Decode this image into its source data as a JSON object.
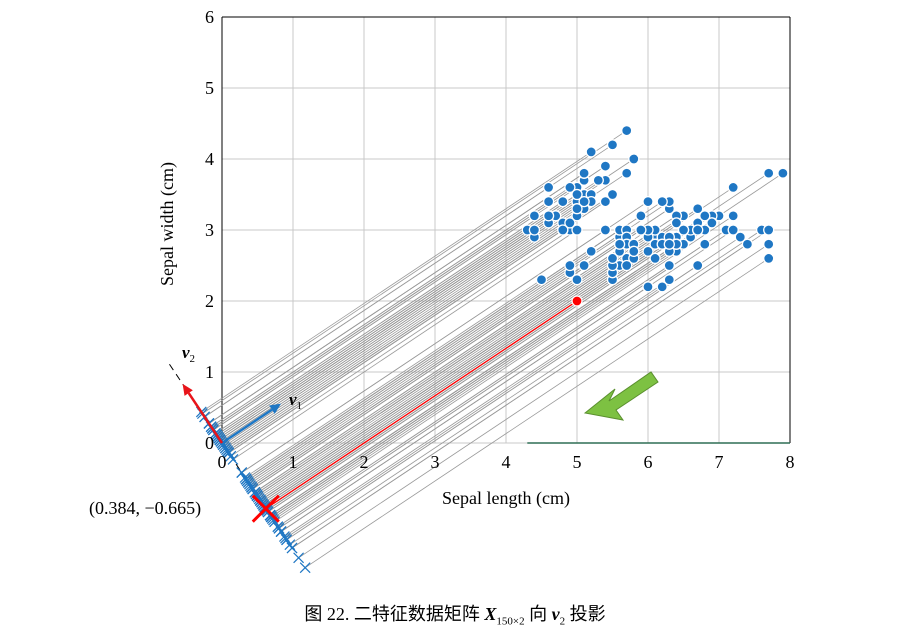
{
  "chart_data": {
    "type": "scatter",
    "xlabel": "Sepal length (cm)",
    "ylabel": "Sepal width (cm)",
    "xlim": [
      0,
      8
    ],
    "ylim": [
      0,
      6
    ],
    "xticks": [
      "0",
      "1",
      "2",
      "3",
      "4",
      "5",
      "6",
      "7",
      "8"
    ],
    "yticks": [
      "0",
      "1",
      "2",
      "3",
      "4",
      "5",
      "6"
    ],
    "grid": true,
    "v1_label": "v",
    "v1_sub": "1",
    "v2_label": "v",
    "v2_sub": "2",
    "v1": [
      0.832,
      0.555
    ],
    "v2": [
      -0.555,
      0.832
    ],
    "highlight_point": [
      5.0,
      2.0
    ],
    "highlight_projection_label": "(0.384, −0.665)",
    "points": [
      [
        5.1,
        3.5
      ],
      [
        4.9,
        3.0
      ],
      [
        4.7,
        3.2
      ],
      [
        4.6,
        3.1
      ],
      [
        5.0,
        3.6
      ],
      [
        5.4,
        3.9
      ],
      [
        4.6,
        3.4
      ],
      [
        5.0,
        3.4
      ],
      [
        4.4,
        2.9
      ],
      [
        4.9,
        3.1
      ],
      [
        5.4,
        3.7
      ],
      [
        4.8,
        3.4
      ],
      [
        4.8,
        3.0
      ],
      [
        4.3,
        3.0
      ],
      [
        5.8,
        4.0
      ],
      [
        5.7,
        4.4
      ],
      [
        5.4,
        3.9
      ],
      [
        5.1,
        3.5
      ],
      [
        5.7,
        3.8
      ],
      [
        5.1,
        3.8
      ],
      [
        5.4,
        3.4
      ],
      [
        5.1,
        3.7
      ],
      [
        4.6,
        3.6
      ],
      [
        5.1,
        3.3
      ],
      [
        4.8,
        3.4
      ],
      [
        5.0,
        3.0
      ],
      [
        5.0,
        3.4
      ],
      [
        5.2,
        3.5
      ],
      [
        5.2,
        3.4
      ],
      [
        4.7,
        3.2
      ],
      [
        4.8,
        3.1
      ],
      [
        5.4,
        3.4
      ],
      [
        5.2,
        4.1
      ],
      [
        5.5,
        4.2
      ],
      [
        4.9,
        3.1
      ],
      [
        5.0,
        3.2
      ],
      [
        5.5,
        3.5
      ],
      [
        4.9,
        3.6
      ],
      [
        4.4,
        3.0
      ],
      [
        5.1,
        3.4
      ],
      [
        5.0,
        3.5
      ],
      [
        4.5,
        2.3
      ],
      [
        4.4,
        3.2
      ],
      [
        5.0,
        3.5
      ],
      [
        5.1,
        3.8
      ],
      [
        4.8,
        3.0
      ],
      [
        5.1,
        3.8
      ],
      [
        4.6,
        3.2
      ],
      [
        5.3,
        3.7
      ],
      [
        5.0,
        3.3
      ],
      [
        7.0,
        3.2
      ],
      [
        6.4,
        3.2
      ],
      [
        6.9,
        3.1
      ],
      [
        5.5,
        2.3
      ],
      [
        6.5,
        2.8
      ],
      [
        5.7,
        2.8
      ],
      [
        6.3,
        3.3
      ],
      [
        4.9,
        2.4
      ],
      [
        6.6,
        2.9
      ],
      [
        5.2,
        2.7
      ],
      [
        5.0,
        2.0
      ],
      [
        5.9,
        3.0
      ],
      [
        6.0,
        2.2
      ],
      [
        6.1,
        2.9
      ],
      [
        5.6,
        2.9
      ],
      [
        6.7,
        3.1
      ],
      [
        5.6,
        3.0
      ],
      [
        5.8,
        2.7
      ],
      [
        6.2,
        2.2
      ],
      [
        5.6,
        2.5
      ],
      [
        5.9,
        3.2
      ],
      [
        6.1,
        2.8
      ],
      [
        6.3,
        2.5
      ],
      [
        6.1,
        2.8
      ],
      [
        6.4,
        2.9
      ],
      [
        6.6,
        3.0
      ],
      [
        6.8,
        2.8
      ],
      [
        6.7,
        3.0
      ],
      [
        6.0,
        2.9
      ],
      [
        5.7,
        2.6
      ],
      [
        5.5,
        2.4
      ],
      [
        5.5,
        2.4
      ],
      [
        5.8,
        2.7
      ],
      [
        6.0,
        2.7
      ],
      [
        5.4,
        3.0
      ],
      [
        6.0,
        3.4
      ],
      [
        6.7,
        3.1
      ],
      [
        6.3,
        2.3
      ],
      [
        5.6,
        3.0
      ],
      [
        5.5,
        2.5
      ],
      [
        5.5,
        2.6
      ],
      [
        6.1,
        3.0
      ],
      [
        5.8,
        2.6
      ],
      [
        5.0,
        2.3
      ],
      [
        5.6,
        2.7
      ],
      [
        5.7,
        3.0
      ],
      [
        5.7,
        2.9
      ],
      [
        6.2,
        2.9
      ],
      [
        5.1,
        2.5
      ],
      [
        5.7,
        2.8
      ],
      [
        6.3,
        3.3
      ],
      [
        5.8,
        2.7
      ],
      [
        7.1,
        3.0
      ],
      [
        6.3,
        2.9
      ],
      [
        6.5,
        3.0
      ],
      [
        7.6,
        3.0
      ],
      [
        4.9,
        2.5
      ],
      [
        7.3,
        2.9
      ],
      [
        6.7,
        2.5
      ],
      [
        7.2,
        3.6
      ],
      [
        6.5,
        3.2
      ],
      [
        6.4,
        2.7
      ],
      [
        6.8,
        3.0
      ],
      [
        5.7,
        2.5
      ],
      [
        5.8,
        2.8
      ],
      [
        6.4,
        3.2
      ],
      [
        6.5,
        3.0
      ],
      [
        7.7,
        3.8
      ],
      [
        7.7,
        2.6
      ],
      [
        6.0,
        2.2
      ],
      [
        6.9,
        3.2
      ],
      [
        5.6,
        2.8
      ],
      [
        7.7,
        2.8
      ],
      [
        6.3,
        2.7
      ],
      [
        6.7,
        3.3
      ],
      [
        7.2,
        3.2
      ],
      [
        6.2,
        2.8
      ],
      [
        6.1,
        3.0
      ],
      [
        6.4,
        2.8
      ],
      [
        7.2,
        3.0
      ],
      [
        7.4,
        2.8
      ],
      [
        7.9,
        3.8
      ],
      [
        6.4,
        2.8
      ],
      [
        6.3,
        2.8
      ],
      [
        6.1,
        2.6
      ],
      [
        7.7,
        3.0
      ],
      [
        6.3,
        3.4
      ],
      [
        6.4,
        3.1
      ],
      [
        6.0,
        3.0
      ],
      [
        6.9,
        3.1
      ],
      [
        6.7,
        3.1
      ],
      [
        6.9,
        3.1
      ],
      [
        5.8,
        2.7
      ],
      [
        6.8,
        3.2
      ],
      [
        6.7,
        3.3
      ],
      [
        6.7,
        3.0
      ],
      [
        6.3,
        2.5
      ],
      [
        6.5,
        3.0
      ],
      [
        6.2,
        3.4
      ],
      [
        5.9,
        3.0
      ]
    ]
  },
  "caption": {
    "prefix": "图 22. 二特征数据矩阵 ",
    "matrix": "X",
    "matrix_sub": "150×2",
    "middle": " 向 ",
    "vector": "v",
    "vector_sub": "2",
    "suffix": " 投影"
  },
  "colors": {
    "point": "#1f77c4",
    "highlight": "#ff0000",
    "projection_line": "#999999",
    "vector": "#1f77c4",
    "v2_vector": "#e8141a",
    "arrow": "#7dc142",
    "grid": "#c8c8c8"
  }
}
